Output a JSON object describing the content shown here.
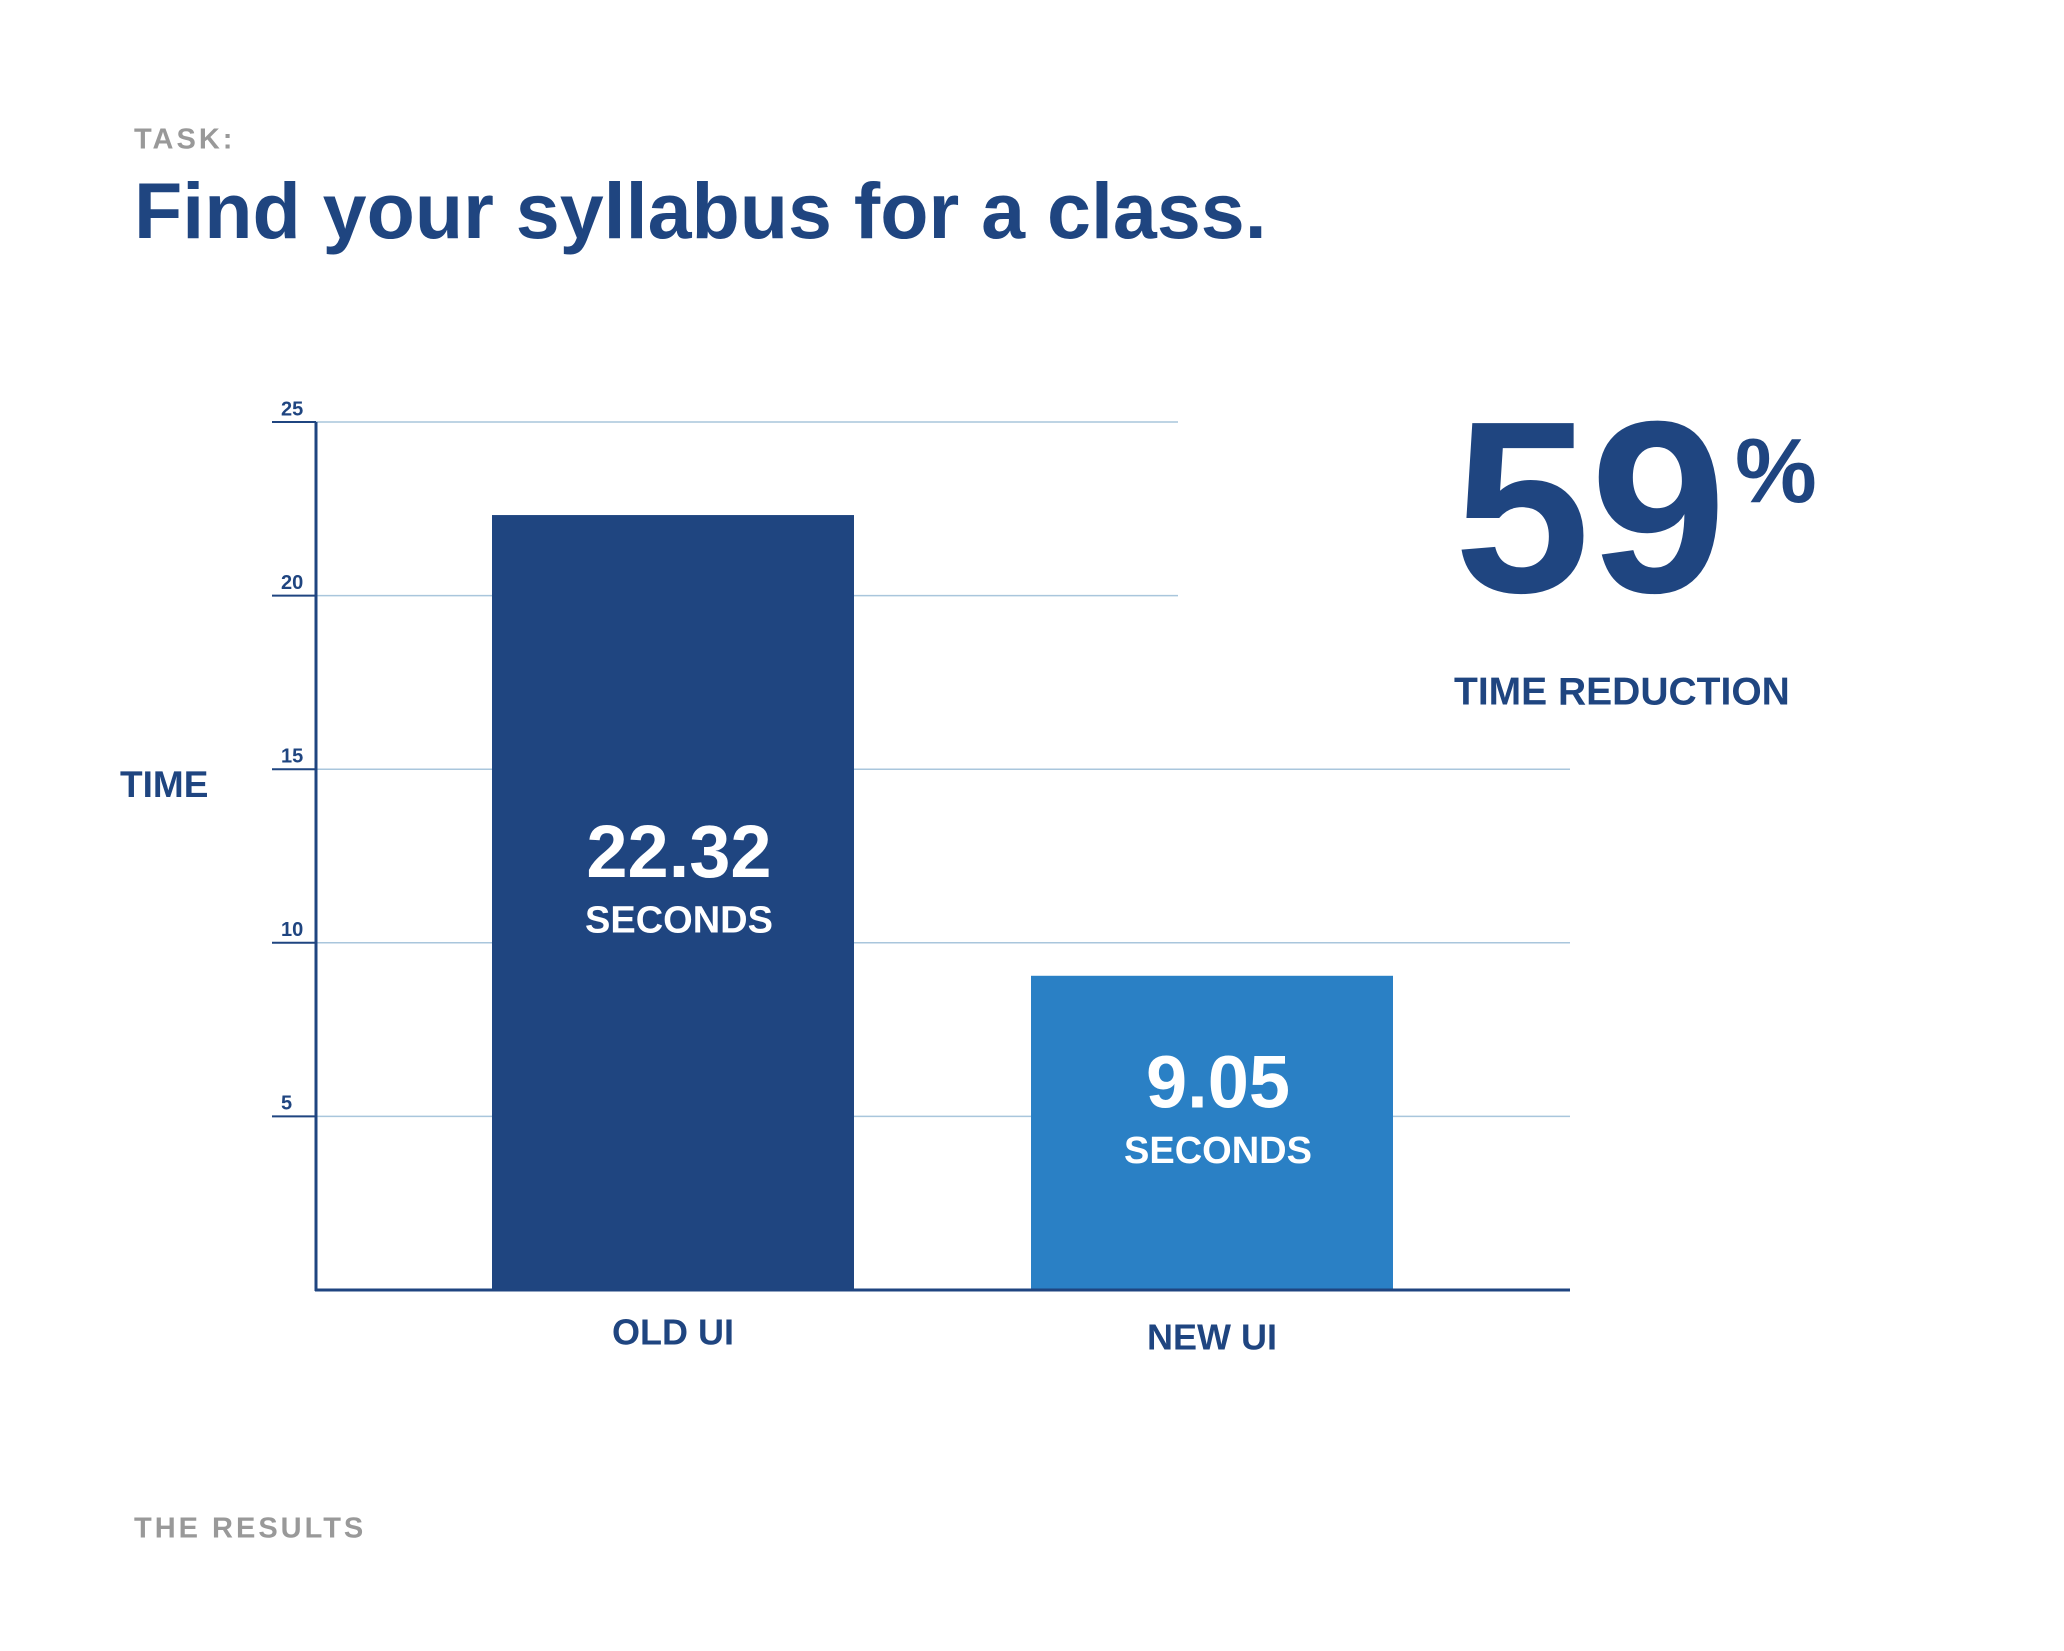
{
  "chart_data": {
    "type": "bar",
    "eyebrow": "TASK:",
    "title": "Find your syllabus for a class.",
    "y_label": "TIME",
    "categories": [
      "OLD UI",
      "NEW UI"
    ],
    "values": [
      22.32,
      9.05
    ],
    "value_unit": "SECONDS",
    "colors": [
      "#1f4580",
      "#2a80c5"
    ],
    "ylim": [
      0,
      25
    ],
    "yticks": [
      5,
      10,
      15,
      20,
      25
    ],
    "grid": true,
    "callout": {
      "number": "59",
      "symbol": "%",
      "caption": "TIME REDUCTION"
    },
    "footer": "THE RESULTS"
  }
}
